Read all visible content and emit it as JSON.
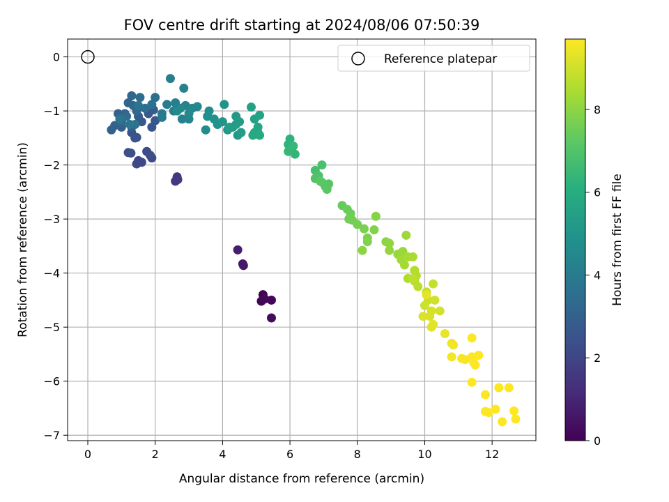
{
  "chart_data": {
    "type": "scatter",
    "title": "FOV centre drift starting at 2024/08/06 07:50:39",
    "xlabel": "Angular distance from reference (arcmin)",
    "ylabel": "Rotation from reference (arcmin)",
    "xlim": [
      -0.6,
      13.3
    ],
    "ylim": [
      -7.1,
      0.33
    ],
    "xticks": [
      0,
      2,
      4,
      6,
      8,
      10,
      12
    ],
    "yticks": [
      0,
      -1,
      -2,
      -3,
      -4,
      -5,
      -6,
      -7
    ],
    "xtick_labels": [
      "0",
      "2",
      "4",
      "6",
      "8",
      "10",
      "12"
    ],
    "ytick_labels": [
      "0",
      "−1",
      "−2",
      "−3",
      "−4",
      "−5",
      "−6",
      "−7"
    ],
    "grid": true,
    "legend": {
      "position": "top-right",
      "entries": [
        "Reference platepar"
      ]
    },
    "reference_point": {
      "x": 0,
      "y": 0,
      "label": "Reference platepar"
    },
    "colorbar": {
      "label": "Hours from first FF file",
      "colormap": "viridis",
      "range": [
        0,
        9.7
      ],
      "ticks": [
        0,
        2,
        4,
        6,
        8
      ],
      "tick_labels": [
        "0",
        "2",
        "4",
        "6",
        "8"
      ]
    },
    "points": [
      [
        5.2,
        -4.4,
        0.0
      ],
      [
        5.15,
        -4.52,
        0.1
      ],
      [
        5.45,
        -4.5,
        0.15
      ],
      [
        5.25,
        -4.48,
        0.2
      ],
      [
        5.45,
        -4.83,
        0.3
      ],
      [
        4.6,
        -3.83,
        0.6
      ],
      [
        4.62,
        -3.86,
        0.7
      ],
      [
        4.45,
        -3.57,
        0.8
      ],
      [
        2.65,
        -2.22,
        1.5
      ],
      [
        2.6,
        -2.3,
        1.55
      ],
      [
        2.67,
        -2.27,
        1.6
      ],
      [
        1.5,
        -1.92,
        2.0
      ],
      [
        1.45,
        -1.98,
        2.05
      ],
      [
        1.6,
        -1.95,
        2.1
      ],
      [
        1.9,
        -1.87,
        2.15
      ],
      [
        1.75,
        -1.75,
        2.2
      ],
      [
        1.85,
        -1.82,
        2.25
      ],
      [
        1.2,
        -1.77,
        2.3
      ],
      [
        1.28,
        -1.78,
        2.35
      ],
      [
        1.4,
        -1.5,
        2.4
      ],
      [
        1.3,
        -1.4,
        2.45
      ],
      [
        1.45,
        -1.49,
        2.5
      ],
      [
        1.9,
        -1.3,
        2.55
      ],
      [
        1.6,
        -1.2,
        2.6
      ],
      [
        2.0,
        -1.18,
        2.65
      ],
      [
        1.8,
        -1.05,
        2.7
      ],
      [
        1.95,
        -0.98,
        2.75
      ],
      [
        1.5,
        -1.1,
        2.8
      ],
      [
        1.3,
        -1.3,
        2.85
      ],
      [
        1.0,
        -1.3,
        2.9
      ],
      [
        0.9,
        -1.05,
        2.95
      ],
      [
        0.7,
        -1.35,
        3.0
      ],
      [
        0.8,
        -1.27,
        3.05
      ],
      [
        1.1,
        -1.05,
        3.1
      ],
      [
        1.2,
        -0.85,
        3.15
      ],
      [
        1.35,
        -0.9,
        3.2
      ],
      [
        1.3,
        -0.72,
        3.25
      ],
      [
        1.45,
        -1.0,
        3.3
      ],
      [
        1.0,
        -1.2,
        3.35
      ],
      [
        1.15,
        -1.1,
        3.4
      ],
      [
        1.55,
        -0.75,
        3.45
      ],
      [
        1.7,
        -0.95,
        3.5
      ],
      [
        2.0,
        -0.75,
        3.55
      ],
      [
        1.9,
        -0.88,
        3.6
      ],
      [
        1.4,
        -1.25,
        3.65
      ],
      [
        1.5,
        -0.9,
        3.7
      ],
      [
        0.95,
        -1.15,
        3.75
      ],
      [
        1.25,
        -1.25,
        3.8
      ],
      [
        2.2,
        -1.05,
        3.9
      ],
      [
        2.2,
        -1.12,
        3.95
      ],
      [
        2.35,
        -0.88,
        4.0
      ],
      [
        2.55,
        -1.0,
        4.05
      ],
      [
        2.45,
        -0.4,
        4.1
      ],
      [
        2.6,
        -0.85,
        4.15
      ],
      [
        2.85,
        -0.58,
        4.2
      ],
      [
        2.9,
        -0.9,
        4.25
      ],
      [
        2.8,
        -1.15,
        4.3
      ],
      [
        3.0,
        -1.15,
        4.35
      ],
      [
        3.1,
        -0.95,
        4.4
      ],
      [
        3.25,
        -0.92,
        4.45
      ],
      [
        2.75,
        -0.95,
        4.5
      ],
      [
        3.0,
        -1.05,
        4.55
      ],
      [
        2.65,
        -1.0,
        4.6
      ],
      [
        3.5,
        -1.35,
        4.7
      ],
      [
        3.6,
        -1.0,
        4.75
      ],
      [
        3.55,
        -1.1,
        4.8
      ],
      [
        3.75,
        -1.15,
        4.85
      ],
      [
        3.85,
        -1.25,
        4.9
      ],
      [
        4.05,
        -0.88,
        4.95
      ],
      [
        4.0,
        -1.2,
        5.0
      ],
      [
        4.15,
        -1.35,
        5.05
      ],
      [
        4.3,
        -1.3,
        5.1
      ],
      [
        4.4,
        -1.1,
        5.15
      ],
      [
        4.45,
        -1.45,
        5.2
      ],
      [
        4.5,
        -1.2,
        5.25
      ],
      [
        4.55,
        -1.4,
        5.3
      ],
      [
        4.4,
        -1.25,
        5.35
      ],
      [
        4.2,
        -1.3,
        5.4
      ],
      [
        4.85,
        -0.93,
        5.5
      ],
      [
        4.95,
        -1.15,
        5.55
      ],
      [
        5.1,
        -1.08,
        5.6
      ],
      [
        5.05,
        -1.3,
        5.65
      ],
      [
        4.95,
        -1.4,
        5.7
      ],
      [
        5.05,
        -1.4,
        5.75
      ],
      [
        4.9,
        -1.45,
        5.8
      ],
      [
        5.1,
        -1.45,
        5.85
      ],
      [
        6.0,
        -1.52,
        6.2
      ],
      [
        5.95,
        -1.62,
        6.25
      ],
      [
        6.05,
        -1.72,
        6.3
      ],
      [
        6.15,
        -1.8,
        6.35
      ],
      [
        5.95,
        -1.75,
        6.4
      ],
      [
        6.1,
        -1.65,
        6.45
      ],
      [
        6.75,
        -2.1,
        6.8
      ],
      [
        6.95,
        -2.0,
        6.85
      ],
      [
        6.85,
        -2.2,
        6.9
      ],
      [
        6.75,
        -2.25,
        6.95
      ],
      [
        6.95,
        -2.32,
        7.0
      ],
      [
        7.05,
        -2.4,
        7.05
      ],
      [
        7.15,
        -2.35,
        7.1
      ],
      [
        7.1,
        -2.45,
        7.15
      ],
      [
        6.9,
        -2.3,
        7.2
      ],
      [
        7.55,
        -2.75,
        7.4
      ],
      [
        7.7,
        -2.82,
        7.45
      ],
      [
        7.8,
        -2.9,
        7.5
      ],
      [
        7.75,
        -3.0,
        7.55
      ],
      [
        7.85,
        -3.02,
        7.6
      ],
      [
        8.0,
        -3.1,
        7.65
      ],
      [
        8.2,
        -3.18,
        7.7
      ],
      [
        8.3,
        -3.35,
        7.75
      ],
      [
        8.3,
        -3.42,
        7.8
      ],
      [
        8.5,
        -3.2,
        7.85
      ],
      [
        8.55,
        -2.95,
        7.9
      ],
      [
        8.15,
        -3.58,
        7.95
      ],
      [
        8.85,
        -3.42,
        8.0
      ],
      [
        8.95,
        -3.45,
        8.05
      ],
      [
        8.95,
        -3.58,
        8.1
      ],
      [
        9.2,
        -3.65,
        8.15
      ],
      [
        9.35,
        -3.6,
        8.2
      ],
      [
        9.45,
        -3.3,
        8.25
      ],
      [
        9.3,
        -3.75,
        8.3
      ],
      [
        9.4,
        -3.85,
        8.35
      ],
      [
        9.5,
        -3.7,
        8.4
      ],
      [
        9.65,
        -3.7,
        8.45
      ],
      [
        9.5,
        -4.1,
        8.5
      ],
      [
        9.7,
        -3.95,
        8.55
      ],
      [
        9.75,
        -4.05,
        8.6
      ],
      [
        9.7,
        -4.15,
        8.65
      ],
      [
        9.8,
        -4.25,
        8.7
      ],
      [
        9.65,
        -4.1,
        8.75
      ],
      [
        10.05,
        -4.35,
        8.8
      ],
      [
        10.25,
        -4.2,
        8.85
      ],
      [
        10.1,
        -4.5,
        8.9
      ],
      [
        10.0,
        -4.6,
        8.95
      ],
      [
        10.3,
        -4.5,
        9.0
      ],
      [
        10.45,
        -4.7,
        9.05
      ],
      [
        10.2,
        -4.7,
        9.1
      ],
      [
        10.15,
        -4.8,
        9.15
      ],
      [
        9.95,
        -4.8,
        9.2
      ],
      [
        10.2,
        -5.0,
        9.25
      ],
      [
        10.25,
        -4.95,
        9.3
      ],
      [
        10.05,
        -4.4,
        9.35
      ],
      [
        10.6,
        -5.12,
        9.4
      ],
      [
        10.8,
        -5.3,
        9.45
      ],
      [
        10.85,
        -5.33,
        9.5
      ],
      [
        10.8,
        -5.55,
        9.55
      ],
      [
        11.1,
        -5.58,
        9.6
      ],
      [
        11.2,
        -5.6,
        9.62
      ],
      [
        11.4,
        -5.55,
        9.64
      ],
      [
        11.45,
        -5.65,
        9.66
      ],
      [
        11.4,
        -5.2,
        9.68
      ],
      [
        11.6,
        -5.52,
        9.7
      ],
      [
        11.5,
        -5.7,
        9.72
      ],
      [
        11.4,
        -6.02,
        9.74
      ],
      [
        11.8,
        -6.25,
        9.76
      ],
      [
        11.8,
        -6.56,
        9.78
      ],
      [
        11.9,
        -6.58,
        9.8
      ],
      [
        12.1,
        -6.52,
        9.82
      ],
      [
        12.2,
        -6.12,
        9.84
      ],
      [
        12.5,
        -6.12,
        9.86
      ],
      [
        12.3,
        -6.75,
        9.88
      ],
      [
        12.65,
        -6.55,
        9.9
      ],
      [
        12.7,
        -6.7,
        9.92
      ]
    ]
  }
}
